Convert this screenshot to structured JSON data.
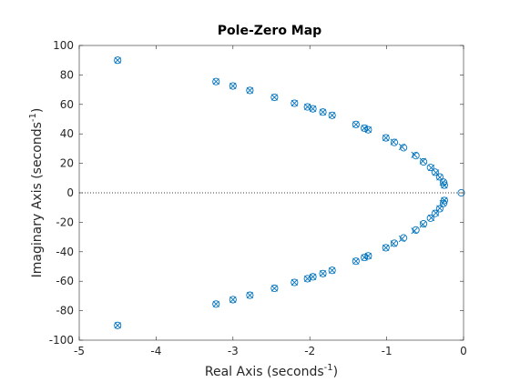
{
  "colors": {
    "marker": "#0072BD",
    "axis": "#262626",
    "zero_line": "#000000",
    "background": "#ffffff"
  },
  "chart_data": {
    "type": "scatter",
    "title": "Pole-Zero Map",
    "xlabel": "Real Axis (seconds",
    "xlabel_sup": "-1",
    "xlabel_close": ")",
    "ylabel": "Imaginary Axis (seconds",
    "ylabel_sup": "-1",
    "ylabel_close": ")",
    "xlim": [
      -5,
      0
    ],
    "ylim": [
      -100,
      100
    ],
    "xticks": [
      -5,
      -4,
      -3,
      -2,
      -1,
      0
    ],
    "yticks": [
      -100,
      -80,
      -60,
      -40,
      -20,
      0,
      20,
      40,
      60,
      80,
      100
    ],
    "grid": false,
    "zero_line": "dotted horizontal at y = 0",
    "legend": "none",
    "series": [
      {
        "marker": "x",
        "points": [
          [
            -4.5,
            90
          ],
          [
            -4.5,
            -90
          ],
          [
            -3.22,
            75.5
          ],
          [
            -3.22,
            -75.5
          ],
          [
            -3.0,
            72.5
          ],
          [
            -3.0,
            -72.5
          ],
          [
            -2.78,
            69.5
          ],
          [
            -2.78,
            -69.5
          ],
          [
            -2.46,
            64.8
          ],
          [
            -2.46,
            -64.8
          ],
          [
            -2.2,
            60.8
          ],
          [
            -2.2,
            -60.8
          ],
          [
            -2.03,
            58.3
          ],
          [
            -2.03,
            -58.3
          ],
          [
            -1.96,
            57.0
          ],
          [
            -1.96,
            -57.0
          ],
          [
            -1.83,
            54.8
          ],
          [
            -1.83,
            -54.8
          ],
          [
            -1.71,
            52.6
          ],
          [
            -1.71,
            -52.6
          ],
          [
            -1.4,
            46.4
          ],
          [
            -1.4,
            -46.4
          ],
          [
            -1.29,
            43.9
          ],
          [
            -1.29,
            -43.9
          ],
          [
            -1.24,
            42.8
          ],
          [
            -1.24,
            -42.8
          ],
          [
            -1.01,
            37.3
          ],
          [
            -1.01,
            -37.3
          ],
          [
            -0.91,
            34.5
          ],
          [
            -0.91,
            -34.5
          ],
          [
            -0.8,
            31.2
          ],
          [
            -0.8,
            -31.2
          ],
          [
            -0.64,
            25.8
          ],
          [
            -0.64,
            -25.8
          ],
          [
            -0.53,
            21.5
          ],
          [
            -0.53,
            -21.5
          ],
          [
            -0.42,
            17.0
          ],
          [
            -0.42,
            -17.0
          ],
          [
            -0.36,
            13.7
          ],
          [
            -0.36,
            -13.7
          ],
          [
            -0.31,
            10.5
          ],
          [
            -0.31,
            -10.5
          ],
          [
            -0.27,
            7.0
          ],
          [
            -0.27,
            -7.0
          ],
          [
            -0.25,
            5.0
          ],
          [
            -0.25,
            -5.0
          ]
        ]
      },
      {
        "marker": "o",
        "points": [
          [
            -4.5,
            90
          ],
          [
            -4.5,
            -90
          ],
          [
            -3.22,
            75.5
          ],
          [
            -3.22,
            -75.5
          ],
          [
            -3.0,
            72.5
          ],
          [
            -3.0,
            -72.5
          ],
          [
            -2.78,
            69.5
          ],
          [
            -2.78,
            -69.5
          ],
          [
            -2.46,
            64.8
          ],
          [
            -2.46,
            -64.8
          ],
          [
            -2.2,
            60.8
          ],
          [
            -2.2,
            -60.8
          ],
          [
            -2.03,
            58.3
          ],
          [
            -2.03,
            -58.3
          ],
          [
            -1.96,
            57.0
          ],
          [
            -1.96,
            -57.0
          ],
          [
            -1.83,
            54.8
          ],
          [
            -1.83,
            -54.8
          ],
          [
            -1.71,
            52.6
          ],
          [
            -1.71,
            -52.6
          ],
          [
            -1.4,
            46.4
          ],
          [
            -1.4,
            -46.4
          ],
          [
            -1.29,
            43.9
          ],
          [
            -1.29,
            -43.9
          ],
          [
            -1.24,
            42.8
          ],
          [
            -1.24,
            -42.8
          ],
          [
            -1.01,
            37.3
          ],
          [
            -1.01,
            -37.3
          ],
          [
            -0.9,
            34.2
          ],
          [
            -0.9,
            -34.2
          ],
          [
            -0.78,
            30.6
          ],
          [
            -0.78,
            -30.6
          ],
          [
            -0.62,
            25.2
          ],
          [
            -0.62,
            -25.2
          ],
          [
            -0.52,
            21.0
          ],
          [
            -0.52,
            -21.0
          ],
          [
            -0.43,
            17.2
          ],
          [
            -0.43,
            -17.2
          ],
          [
            -0.37,
            14.0
          ],
          [
            -0.37,
            -14.0
          ],
          [
            -0.31,
            10.8
          ],
          [
            -0.31,
            -10.8
          ],
          [
            -0.26,
            7.2
          ],
          [
            -0.26,
            -7.2
          ],
          [
            -0.25,
            5.2
          ],
          [
            -0.25,
            -5.2
          ],
          [
            -0.03,
            0
          ]
        ]
      }
    ]
  }
}
